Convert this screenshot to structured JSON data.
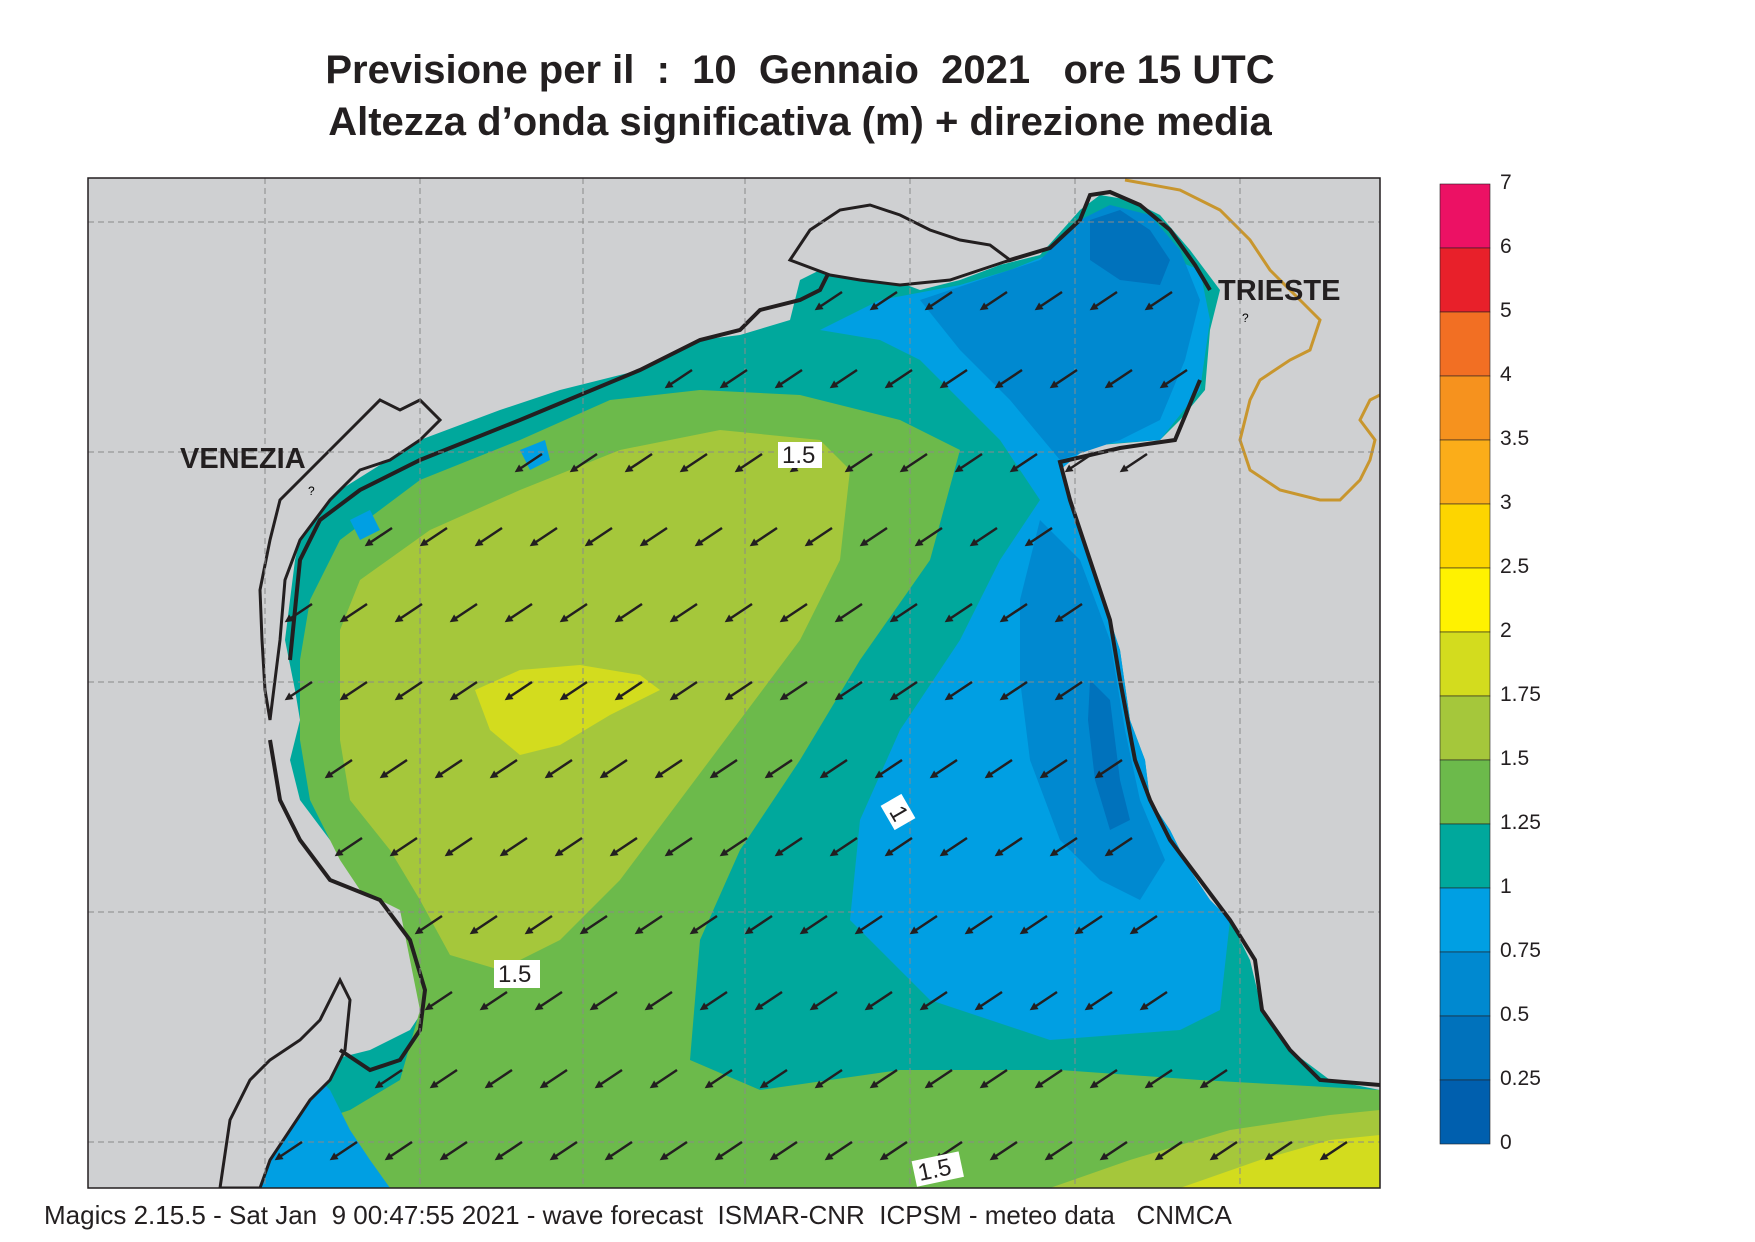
{
  "title_line1": "Previsione per il  :  10  Gennaio  2021   ore 15 UTC",
  "title_line2": "Altezza d’onda significativa (m) + direzione media",
  "cities": [
    {
      "name": "VENEZIA"
    },
    {
      "name": "TRIESTE"
    }
  ],
  "contour_labels": [
    "1.5",
    "1",
    "1.5",
    "1.5"
  ],
  "legend": {
    "levels": [
      "7",
      "6",
      "5",
      "4",
      "3.5",
      "3",
      "2.5",
      "2",
      "1.75",
      "1.5",
      "1.25",
      "1",
      "0.75",
      "0.5",
      "0.25",
      "0"
    ],
    "colors": [
      "#ec1164",
      "#e8202a",
      "#f26f23",
      "#f6921e",
      "#fbad19",
      "#fdd500",
      "#fff200",
      "#d3dc1e",
      "#a5c73b",
      "#6cba4b",
      "#00a89c",
      "#009fe3",
      "#0089d0",
      "#0072bc",
      "#005fae"
    ]
  },
  "colors": {
    "land": "#cfd0d2",
    "coast": "#231f20",
    "border": "#c8962e",
    "arrow": "#231f20"
  },
  "wave_direction": "south-west",
  "footer": "Magics 2.15.5 - Sat Jan  9 00:47:55 2021 - wave forecast  ISMAR-CNR  ICPSM - meteo data   CNMCA"
}
